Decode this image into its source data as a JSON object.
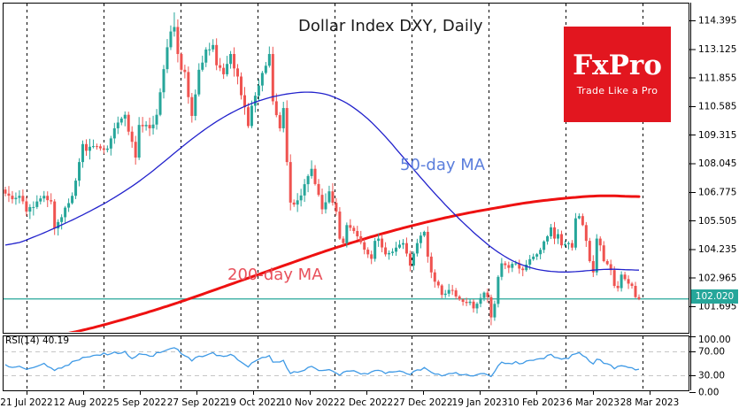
{
  "title": "Dollar Index DXY, Daily",
  "logo": {
    "name": "FxPro",
    "tagline": "Trade Like a Pro",
    "bg": "#e2161f"
  },
  "labels": {
    "ma50": "50-day MA",
    "ma200": "200-day MA",
    "rsi": "RSI(14) 40.19"
  },
  "price_label": "102.020",
  "chart_data": {
    "type": "candlestick",
    "title": "Dollar Index DXY, Daily",
    "symbol": "Dollar Index DXY",
    "timeframe": "Daily",
    "current_price": 102.02,
    "days": 180,
    "x_labels": [
      "21 Jul 2022",
      "12 Aug 2022",
      "5 Sep 2022",
      "27 Sep 2022",
      "19 Oct 2022",
      "10 Nov 2022",
      "2 Dec 2022",
      "27 Dec 2022",
      "19 Jan 2023",
      "10 Feb 2023",
      "6 Mar 2023",
      "28 Mar 2023"
    ],
    "y_ticks": [
      114.395,
      113.125,
      111.855,
      110.585,
      109.315,
      108.045,
      106.775,
      105.505,
      104.235,
      102.965,
      101.695
    ],
    "rsi_ticks": [
      100.0,
      70.0,
      30.0,
      0.0
    ],
    "rsi_levels": [
      70,
      30
    ],
    "grid": true,
    "series": [
      {
        "name": "DXY close keypoints",
        "type": "candles",
        "points": [
          [
            0,
            106.7
          ],
          [
            2,
            106.45
          ],
          [
            4,
            106.6
          ],
          [
            6,
            105.9
          ],
          [
            9,
            106.35
          ],
          [
            11,
            106.6
          ],
          [
            13,
            106.35
          ],
          [
            14,
            105.15
          ],
          [
            16,
            105.65
          ],
          [
            19,
            106.6
          ],
          [
            21,
            108.1
          ],
          [
            22,
            108.9
          ],
          [
            23,
            108.6
          ],
          [
            26,
            108.8
          ],
          [
            29,
            108.7
          ],
          [
            31,
            109.6
          ],
          [
            34,
            110.2
          ],
          [
            36,
            109.0
          ],
          [
            37,
            108.3
          ],
          [
            38,
            109.75
          ],
          [
            41,
            109.6
          ],
          [
            43,
            110.2
          ],
          [
            44,
            111.2
          ],
          [
            46,
            113.2
          ],
          [
            47,
            113.9
          ],
          [
            48,
            114.1
          ],
          [
            49,
            112.9
          ],
          [
            50,
            112.2
          ],
          [
            51,
            112.1
          ],
          [
            53,
            110.15
          ],
          [
            55,
            112.2
          ],
          [
            57,
            113.1
          ],
          [
            59,
            113.3
          ],
          [
            60,
            112.4
          ],
          [
            62,
            112.0
          ],
          [
            64,
            112.9
          ],
          [
            66,
            111.9
          ],
          [
            69,
            109.7
          ],
          [
            70,
            110.6
          ],
          [
            72,
            111.5
          ],
          [
            75,
            112.9
          ],
          [
            76,
            110.8
          ],
          [
            78,
            109.6
          ],
          [
            79,
            110.5
          ],
          [
            80,
            108.1
          ],
          [
            81,
            106.3
          ],
          [
            83,
            106.4
          ],
          [
            87,
            107.8
          ],
          [
            90,
            106.0
          ],
          [
            92,
            106.8
          ],
          [
            94,
            105.9
          ],
          [
            95,
            104.7
          ],
          [
            96,
            104.5
          ],
          [
            97,
            105.3
          ],
          [
            100,
            104.8
          ],
          [
            103,
            104.0
          ],
          [
            104,
            103.8
          ],
          [
            105,
            104.6
          ],
          [
            106,
            104.7
          ],
          [
            108,
            104.0
          ],
          [
            111,
            104.3
          ],
          [
            113,
            104.5
          ],
          [
            115,
            103.5
          ],
          [
            117,
            104.5
          ],
          [
            119,
            105.0
          ],
          [
            120,
            103.9
          ],
          [
            121,
            103.2
          ],
          [
            124,
            102.2
          ],
          [
            127,
            102.4
          ],
          [
            129,
            102.0
          ],
          [
            132,
            101.9
          ],
          [
            133,
            101.6
          ],
          [
            136,
            102.3
          ],
          [
            137,
            102.1
          ],
          [
            138,
            101.2
          ],
          [
            139,
            101.8
          ],
          [
            140,
            103.0
          ],
          [
            141,
            103.6
          ],
          [
            143,
            103.4
          ],
          [
            145,
            103.6
          ],
          [
            147,
            103.3
          ],
          [
            150,
            103.9
          ],
          [
            152,
            104.2
          ],
          [
            155,
            105.2
          ],
          [
            156,
            104.7
          ],
          [
            157,
            104.9
          ],
          [
            158,
            104.4
          ],
          [
            160,
            104.5
          ],
          [
            161,
            104.3
          ],
          [
            162,
            105.6
          ],
          [
            163,
            105.7
          ],
          [
            164,
            105.3
          ],
          [
            165,
            104.6
          ],
          [
            166,
            103.7
          ],
          [
            167,
            103.2
          ],
          [
            168,
            104.7
          ],
          [
            169,
            104.4
          ],
          [
            170,
            103.7
          ],
          [
            172,
            103.3
          ],
          [
            173,
            102.6
          ],
          [
            174,
            102.5
          ],
          [
            175,
            103.1
          ],
          [
            176,
            102.9
          ],
          [
            177,
            102.7
          ],
          [
            178,
            102.6
          ],
          [
            179,
            102.1
          ],
          [
            180,
            102.02
          ]
        ]
      },
      {
        "name": "50-day MA",
        "type": "line",
        "points": [
          [
            0,
            104.3
          ],
          [
            8,
            104.75
          ],
          [
            16,
            105.3
          ],
          [
            24,
            105.9
          ],
          [
            32,
            106.6
          ],
          [
            40,
            107.45
          ],
          [
            48,
            108.5
          ],
          [
            56,
            109.5
          ],
          [
            64,
            110.3
          ],
          [
            72,
            110.85
          ],
          [
            80,
            111.15
          ],
          [
            88,
            111.25
          ],
          [
            94,
            111.0
          ],
          [
            100,
            110.45
          ],
          [
            106,
            109.6
          ],
          [
            112,
            108.5
          ],
          [
            118,
            107.4
          ],
          [
            124,
            106.35
          ],
          [
            130,
            105.4
          ],
          [
            136,
            104.55
          ],
          [
            141,
            103.95
          ],
          [
            146,
            103.55
          ],
          [
            150,
            103.35
          ],
          [
            155,
            103.22
          ],
          [
            160,
            103.2
          ],
          [
            164,
            103.25
          ],
          [
            168,
            103.32
          ],
          [
            172,
            103.36
          ],
          [
            176,
            103.32
          ],
          [
            180,
            103.28
          ]
        ]
      },
      {
        "name": "200-day MA",
        "type": "line",
        "points": [
          [
            14,
            100.38
          ],
          [
            22,
            100.62
          ],
          [
            30,
            100.95
          ],
          [
            40,
            101.4
          ],
          [
            50,
            101.9
          ],
          [
            60,
            102.45
          ],
          [
            70,
            103.0
          ],
          [
            80,
            103.55
          ],
          [
            90,
            104.1
          ],
          [
            100,
            104.6
          ],
          [
            110,
            105.05
          ],
          [
            120,
            105.45
          ],
          [
            130,
            105.8
          ],
          [
            140,
            106.08
          ],
          [
            148,
            106.3
          ],
          [
            156,
            106.45
          ],
          [
            163,
            106.55
          ],
          [
            170,
            106.62
          ],
          [
            176,
            106.58
          ],
          [
            180,
            106.55
          ]
        ]
      },
      {
        "name": "RSI(14)",
        "type": "rsi",
        "last_value": 40.19,
        "points": [
          [
            0,
            48
          ],
          [
            3,
            44
          ],
          [
            6,
            40
          ],
          [
            9,
            45
          ],
          [
            11,
            50
          ],
          [
            14,
            38
          ],
          [
            17,
            46
          ],
          [
            22,
            60
          ],
          [
            26,
            64
          ],
          [
            30,
            66
          ],
          [
            34,
            70
          ],
          [
            36,
            58
          ],
          [
            38,
            66
          ],
          [
            41,
            62
          ],
          [
            44,
            68
          ],
          [
            48,
            76
          ],
          [
            50,
            66
          ],
          [
            53,
            54
          ],
          [
            55,
            62
          ],
          [
            59,
            68
          ],
          [
            60,
            63
          ],
          [
            64,
            65
          ],
          [
            69,
            44
          ],
          [
            72,
            57
          ],
          [
            75,
            63
          ],
          [
            76,
            52
          ],
          [
            79,
            55
          ],
          [
            81,
            33
          ],
          [
            83,
            35
          ],
          [
            87,
            45
          ],
          [
            90,
            38
          ],
          [
            93,
            37
          ],
          [
            95,
            30
          ],
          [
            97,
            37
          ],
          [
            100,
            35
          ],
          [
            103,
            32
          ],
          [
            105,
            38
          ],
          [
            108,
            33
          ],
          [
            111,
            36
          ],
          [
            115,
            31
          ],
          [
            117,
            39
          ],
          [
            119,
            43
          ],
          [
            121,
            35
          ],
          [
            124,
            29
          ],
          [
            127,
            33
          ],
          [
            129,
            31
          ],
          [
            133,
            29
          ],
          [
            136,
            33
          ],
          [
            138,
            28
          ],
          [
            140,
            46
          ],
          [
            141,
            52
          ],
          [
            143,
            50
          ],
          [
            145,
            53
          ],
          [
            147,
            50
          ],
          [
            150,
            55
          ],
          [
            152,
            58
          ],
          [
            155,
            65
          ],
          [
            156,
            60
          ],
          [
            158,
            57
          ],
          [
            160,
            58
          ],
          [
            162,
            66
          ],
          [
            163,
            68
          ],
          [
            165,
            60
          ],
          [
            166,
            53
          ],
          [
            167,
            49
          ],
          [
            168,
            57
          ],
          [
            170,
            50
          ],
          [
            172,
            47
          ],
          [
            173,
            41
          ],
          [
            175,
            46
          ],
          [
            177,
            43
          ],
          [
            179,
            39
          ],
          [
            180,
            40.19
          ]
        ]
      }
    ],
    "colors": {
      "candle_up": "#26a69a",
      "candle_down": "#ef5350",
      "ma50": "#2222cc",
      "ma200": "#ee1111",
      "rsi": "#3f9ae6",
      "price_line": "#26a69a",
      "price_badge_bg": "#26a69a",
      "grid": "#000000",
      "rsi_level": "#c6c6c6",
      "border": "#000000"
    }
  }
}
